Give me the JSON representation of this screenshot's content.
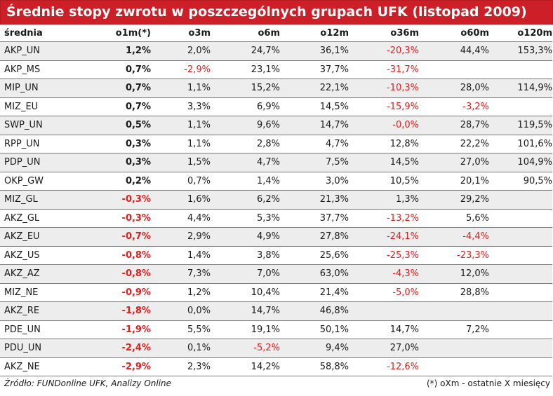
{
  "title": "Średnie stopy zwrotu w poszczególnych grupach UFK (listopad 2009)",
  "colors": {
    "header_bg": "#cc1f27",
    "negative": "#e02020",
    "row_shade": "#ededed"
  },
  "columns": [
    "średnia",
    "o1m(*)",
    "o3m",
    "o6m",
    "o12m",
    "o36m",
    "o60m",
    "o120m"
  ],
  "rows": [
    [
      "AKP_UN",
      "1,2%",
      "2,0%",
      "24,7%",
      "36,1%",
      "-20,3%",
      "44,4%",
      "153,3%"
    ],
    [
      "AKP_MS",
      "0,7%",
      "-2,9%",
      "23,1%",
      "37,7%",
      "-31,7%",
      "",
      ""
    ],
    [
      "MIP_UN",
      "0,7%",
      "1,1%",
      "15,2%",
      "22,1%",
      "-10,3%",
      "28,0%",
      "114,9%"
    ],
    [
      "MIZ_EU",
      "0,7%",
      "3,3%",
      "6,9%",
      "14,5%",
      "-15,9%",
      "-3,2%",
      ""
    ],
    [
      "SWP_UN",
      "0,5%",
      "1,1%",
      "9,6%",
      "14,7%",
      "-0,0%",
      "28,7%",
      "119,5%"
    ],
    [
      "RPP_UN",
      "0,3%",
      "1,1%",
      "2,8%",
      "4,7%",
      "12,8%",
      "22,2%",
      "101,6%"
    ],
    [
      "PDP_UN",
      "0,3%",
      "1,5%",
      "4,7%",
      "7,5%",
      "14,5%",
      "27,0%",
      "104,9%"
    ],
    [
      "OKP_GW",
      "0,2%",
      "0,7%",
      "1,4%",
      "3,0%",
      "10,5%",
      "20,1%",
      "90,5%"
    ],
    [
      "MIZ_GL",
      "-0,3%",
      "1,6%",
      "6,2%",
      "21,3%",
      "1,3%",
      "29,2%",
      ""
    ],
    [
      "AKZ_GL",
      "-0,3%",
      "4,4%",
      "5,3%",
      "37,7%",
      "-13,2%",
      "5,6%",
      ""
    ],
    [
      "AKZ_EU",
      "-0,7%",
      "2,9%",
      "4,9%",
      "27,8%",
      "-24,1%",
      "-4,4%",
      ""
    ],
    [
      "AKZ_US",
      "-0,8%",
      "1,4%",
      "3,8%",
      "25,6%",
      "-25,3%",
      "-23,3%",
      ""
    ],
    [
      "AKZ_AZ",
      "-0,8%",
      "7,3%",
      "7,0%",
      "63,0%",
      "-4,3%",
      "12,0%",
      ""
    ],
    [
      "MIZ_NE",
      "-0,9%",
      "1,2%",
      "10,4%",
      "21,4%",
      "-5,0%",
      "28,8%",
      ""
    ],
    [
      "AKZ_RE",
      "-1,8%",
      "0,0%",
      "14,7%",
      "46,8%",
      "",
      "",
      ""
    ],
    [
      "PDE_UN",
      "-1,9%",
      "5,5%",
      "19,1%",
      "50,1%",
      "14,7%",
      "7,2%",
      ""
    ],
    [
      "PDU_UN",
      "-2,4%",
      "0,1%",
      "-5,2%",
      "9,4%",
      "27,0%",
      "",
      ""
    ],
    [
      "AKZ_NE",
      "-2,9%",
      "2,3%",
      "14,2%",
      "58,8%",
      "-12,6%",
      "",
      ""
    ]
  ],
  "footer": {
    "source": "Źródło: FUNDonline UFK, Analizy Online",
    "note": "(*) oXm - ostatnie X miesięcy"
  }
}
